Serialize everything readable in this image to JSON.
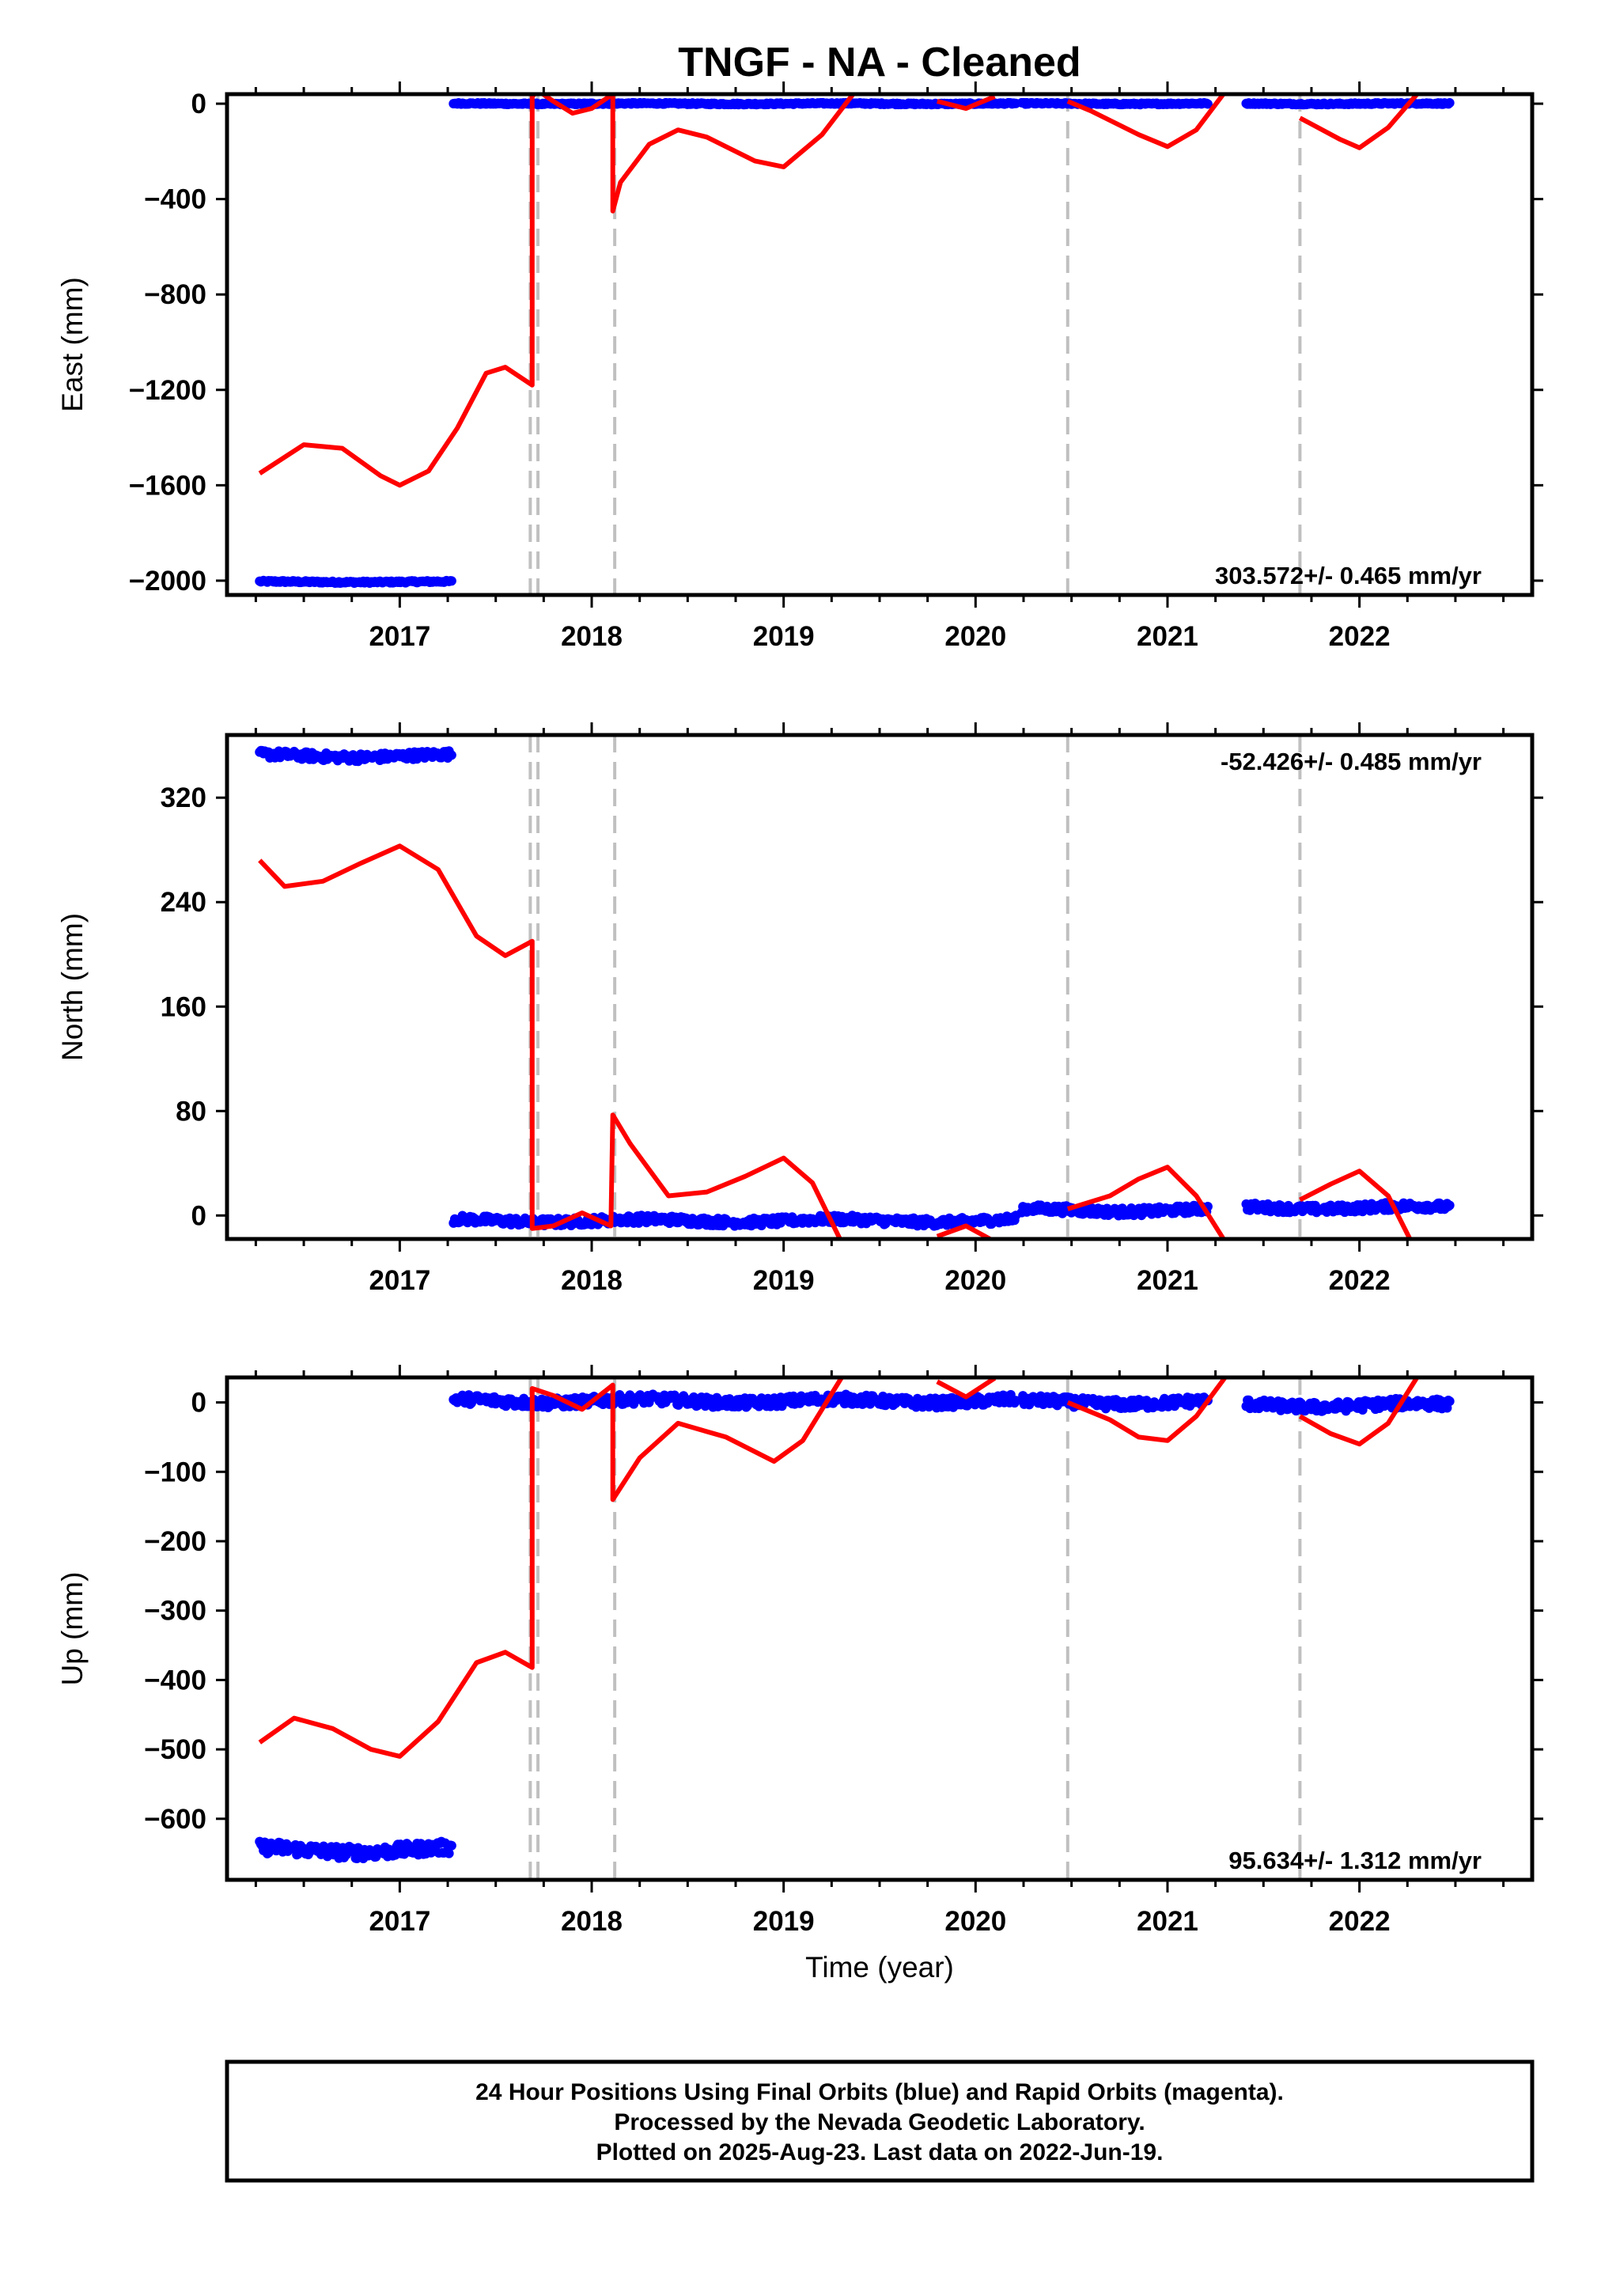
{
  "title": "TNGF  - NA - Cleaned",
  "footer": {
    "line1": "24 Hour Positions Using Final Orbits (blue) and Rapid Orbits (magenta).",
    "line2": "Processed by the Nevada Geodetic Laboratory.",
    "line3": "Plotted on 2025-Aug-23. Last data on 2022-Jun-19."
  },
  "colors": {
    "data": "#0000ff",
    "model": "#ff0000",
    "breaks": "#c0c0c0",
    "frame": "#000000"
  },
  "chart_data": [
    {
      "type": "scatter",
      "component": "East",
      "ylabel": "East (mm)",
      "xlabel": "",
      "xlim": [
        2016.1,
        2022.9
      ],
      "ylim": [
        -2060,
        40
      ],
      "yticks": [
        0,
        -400,
        -800,
        -1200,
        -1600,
        -2000
      ],
      "xticks": [
        2017,
        2018,
        2019,
        2020,
        2021,
        2022
      ],
      "rate_label": "303.572+/- 0.465 mm/yr",
      "rate_position": "bottom-right",
      "data_segments": [
        {
          "x0": 2016.27,
          "x1": 2017.27,
          "level": -2005,
          "noise": 4
        },
        {
          "x0": 2017.28,
          "x1": 2020.21,
          "level": 0,
          "noise": 3
        },
        {
          "x0": 2020.24,
          "x1": 2021.21,
          "level": 0,
          "noise": 3
        },
        {
          "x0": 2021.41,
          "x1": 2022.47,
          "level": 0,
          "noise": 3
        }
      ],
      "model_curve": [
        [
          2016.27,
          -1550
        ],
        [
          2016.5,
          -1430
        ],
        [
          2016.7,
          -1445
        ],
        [
          2016.9,
          -1560
        ],
        [
          2017.0,
          -1600
        ],
        [
          2017.15,
          -1540
        ],
        [
          2017.3,
          -1360
        ],
        [
          2017.45,
          -1130
        ],
        [
          2017.55,
          -1105
        ],
        [
          2017.69,
          -1180
        ],
        [
          2017.69,
          30
        ],
        [
          2017.72,
          55
        ],
        [
          2017.8,
          10
        ],
        [
          2017.9,
          -40
        ],
        [
          2018.0,
          -20
        ],
        [
          2018.11,
          40
        ],
        [
          2018.11,
          -450
        ],
        [
          2018.15,
          -330
        ],
        [
          2018.3,
          -170
        ],
        [
          2018.45,
          -110
        ],
        [
          2018.6,
          -140
        ],
        [
          2018.85,
          -240
        ],
        [
          2019.0,
          -265
        ],
        [
          2019.2,
          -130
        ],
        [
          2019.4,
          80
        ],
        [
          2019.8,
          10
        ],
        [
          2019.95,
          -20
        ],
        [
          2020.1,
          30
        ],
        [
          2020.48,
          10
        ],
        [
          2020.6,
          -30
        ],
        [
          2020.85,
          -130
        ],
        [
          2021.0,
          -180
        ],
        [
          2021.15,
          -110
        ],
        [
          2021.3,
          50
        ],
        [
          2021.69,
          -60
        ],
        [
          2021.9,
          -150
        ],
        [
          2022.0,
          -185
        ],
        [
          2022.15,
          -100
        ],
        [
          2022.3,
          40
        ]
      ],
      "breaks": [
        2017.68,
        2017.72,
        2018.12,
        2020.48,
        2021.69
      ]
    },
    {
      "type": "scatter",
      "component": "North",
      "ylabel": "North (mm)",
      "xlabel": "",
      "xlim": [
        2016.1,
        2022.9
      ],
      "ylim": [
        -18,
        368
      ],
      "yticks": [
        0,
        80,
        160,
        240,
        320
      ],
      "xticks": [
        2017,
        2018,
        2019,
        2020,
        2021,
        2022
      ],
      "rate_label": "-52.426+/- 0.485 mm/yr",
      "rate_position": "top-right",
      "data_segments": [
        {
          "x0": 2016.27,
          "x1": 2017.27,
          "level": 352,
          "noise": 3
        },
        {
          "x0": 2017.28,
          "x1": 2020.21,
          "level": -4,
          "noise": 3
        },
        {
          "x0": 2020.24,
          "x1": 2021.21,
          "level": 4,
          "noise": 3
        },
        {
          "x0": 2021.41,
          "x1": 2022.47,
          "level": 6,
          "noise": 3
        }
      ],
      "model_curve": [
        [
          2016.27,
          272
        ],
        [
          2016.4,
          252
        ],
        [
          2016.6,
          256
        ],
        [
          2016.8,
          270
        ],
        [
          2017.0,
          283
        ],
        [
          2017.2,
          265
        ],
        [
          2017.4,
          214
        ],
        [
          2017.55,
          199
        ],
        [
          2017.69,
          210
        ],
        [
          2017.69,
          -10
        ],
        [
          2017.8,
          -8
        ],
        [
          2017.95,
          2
        ],
        [
          2018.1,
          -8
        ],
        [
          2018.11,
          77
        ],
        [
          2018.2,
          55
        ],
        [
          2018.4,
          15
        ],
        [
          2018.6,
          18
        ],
        [
          2018.8,
          30
        ],
        [
          2019.0,
          44
        ],
        [
          2019.15,
          25
        ],
        [
          2019.3,
          -20
        ],
        [
          2019.8,
          -16
        ],
        [
          2019.95,
          -8
        ],
        [
          2020.1,
          -20
        ],
        [
          2020.48,
          5
        ],
        [
          2020.7,
          15
        ],
        [
          2020.85,
          28
        ],
        [
          2021.0,
          37
        ],
        [
          2021.15,
          15
        ],
        [
          2021.3,
          -20
        ],
        [
          2021.69,
          12
        ],
        [
          2021.85,
          24
        ],
        [
          2022.0,
          34
        ],
        [
          2022.15,
          15
        ],
        [
          2022.27,
          -20
        ]
      ],
      "breaks": [
        2017.68,
        2017.72,
        2018.12,
        2020.48,
        2021.69
      ]
    },
    {
      "type": "scatter",
      "component": "Up",
      "ylabel": "Up (mm)",
      "xlabel": "Time (year)",
      "xlim": [
        2016.1,
        2022.9
      ],
      "ylim": [
        -688,
        36
      ],
      "yticks": [
        0,
        -100,
        -200,
        -300,
        -400,
        -500,
        -600
      ],
      "xticks": [
        2017,
        2018,
        2019,
        2020,
        2021,
        2022
      ],
      "rate_label": "95.634+/- 1.312 mm/yr",
      "rate_position": "bottom-right",
      "data_segments": [
        {
          "x0": 2016.27,
          "x1": 2017.27,
          "level": -645,
          "noise": 9
        },
        {
          "x0": 2017.28,
          "x1": 2020.21,
          "level": 2,
          "noise": 7
        },
        {
          "x0": 2020.24,
          "x1": 2021.21,
          "level": 0,
          "noise": 7
        },
        {
          "x0": 2021.41,
          "x1": 2022.47,
          "level": -4,
          "noise": 7
        }
      ],
      "model_curve": [
        [
          2016.27,
          -490
        ],
        [
          2016.45,
          -455
        ],
        [
          2016.65,
          -470
        ],
        [
          2016.85,
          -500
        ],
        [
          2017.0,
          -510
        ],
        [
          2017.2,
          -460
        ],
        [
          2017.4,
          -375
        ],
        [
          2017.55,
          -360
        ],
        [
          2017.69,
          -382
        ],
        [
          2017.69,
          20
        ],
        [
          2017.8,
          10
        ],
        [
          2017.95,
          -10
        ],
        [
          2018.11,
          25
        ],
        [
          2018.11,
          -140
        ],
        [
          2018.25,
          -80
        ],
        [
          2018.45,
          -30
        ],
        [
          2018.7,
          -50
        ],
        [
          2018.95,
          -85
        ],
        [
          2019.1,
          -55
        ],
        [
          2019.3,
          35
        ],
        [
          2019.8,
          30
        ],
        [
          2019.95,
          8
        ],
        [
          2020.1,
          35
        ],
        [
          2020.48,
          0
        ],
        [
          2020.7,
          -25
        ],
        [
          2020.85,
          -50
        ],
        [
          2021.0,
          -55
        ],
        [
          2021.15,
          -20
        ],
        [
          2021.3,
          36
        ],
        [
          2021.69,
          -20
        ],
        [
          2021.85,
          -45
        ],
        [
          2022.0,
          -60
        ],
        [
          2022.15,
          -30
        ],
        [
          2022.3,
          36
        ]
      ],
      "breaks": [
        2017.68,
        2017.72,
        2018.12,
        2020.48,
        2021.69
      ]
    }
  ]
}
